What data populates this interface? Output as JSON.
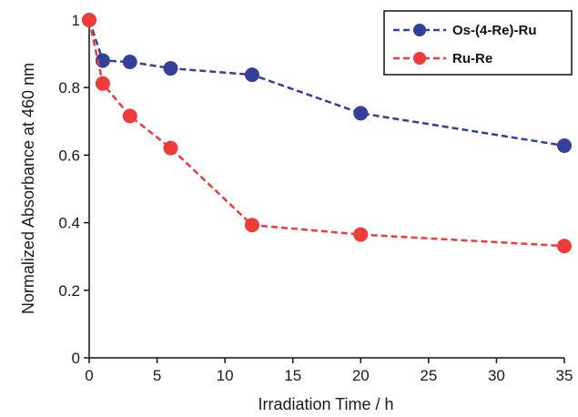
{
  "chart_data": {
    "type": "line",
    "title": "",
    "xlabel": "Irradiation Time / h",
    "ylabel": "Normalized Absorbance at 460 nm",
    "xlim": [
      0,
      35
    ],
    "ylim": [
      0,
      1
    ],
    "xticks": [
      "0",
      "5",
      "10",
      "15",
      "20",
      "25",
      "30",
      "35"
    ],
    "yticks": [
      "0",
      "0.2",
      "0.4",
      "0.6",
      "0.8",
      "1"
    ],
    "grid": false,
    "legend_position": "top-right",
    "series": [
      {
        "name": "Os-(4-Re)-Ru",
        "color": "#33409a",
        "x": [
          0,
          1,
          3,
          6,
          12,
          20,
          35
        ],
        "y": [
          1.0,
          0.88,
          0.876,
          0.857,
          0.838,
          0.724,
          0.628
        ]
      },
      {
        "name": "Ru-Re",
        "color": "#ef3b39",
        "x": [
          0,
          1,
          3,
          6,
          12,
          20,
          35
        ],
        "y": [
          1.0,
          0.812,
          0.716,
          0.621,
          0.393,
          0.365,
          0.331
        ]
      }
    ]
  }
}
